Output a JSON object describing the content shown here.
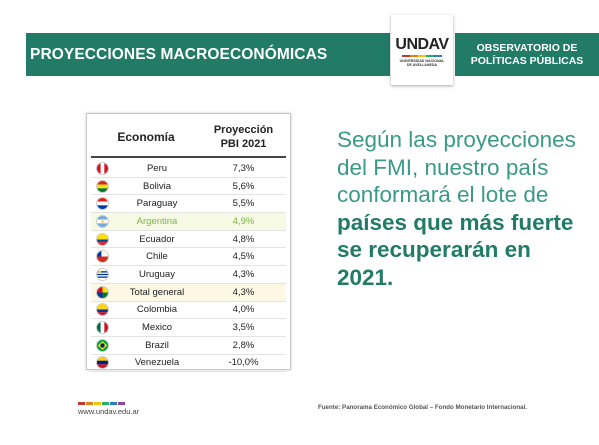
{
  "header": {
    "title": "PROYECCIONES MACROECONÓMICAS",
    "logo_mark": "UNDAV",
    "logo_sub": "UNIVERSIDAD NACIONAL DE AVELLANEDA",
    "right_line1": "OBSERVATORIO DE",
    "right_line2": "POLÍTICAS PÚBLICAS"
  },
  "table": {
    "col1": "Economía",
    "col2_line1": "Proyección",
    "col2_line2": "PBI 2021",
    "rows": [
      {
        "name": "Peru",
        "value": "7,3%",
        "flag": "peru-flag"
      },
      {
        "name": "Bolivia",
        "value": "5,6%",
        "flag": "bolivia-flag"
      },
      {
        "name": "Paraguay",
        "value": "5,5%",
        "flag": "paraguay-flag"
      },
      {
        "name": "Argentina",
        "value": "4,9%",
        "flag": "argentina-flag"
      },
      {
        "name": "Ecuador",
        "value": "4,8%",
        "flag": "ecuador-flag"
      },
      {
        "name": "Chile",
        "value": "4,5%",
        "flag": "chile-flag"
      },
      {
        "name": "Uruguay",
        "value": "4,3%",
        "flag": "uruguay-flag"
      },
      {
        "name": "Total general",
        "value": "4,3%",
        "flag": "latam-flag"
      },
      {
        "name": "Colombia",
        "value": "4,0%",
        "flag": "colombia-flag"
      },
      {
        "name": "Mexico",
        "value": "3,5%",
        "flag": "mexico-flag"
      },
      {
        "name": "Brazil",
        "value": "2,8%",
        "flag": "brazil-flag"
      },
      {
        "name": "Venezuela",
        "value": "-10,0%",
        "flag": "venezuela-flag"
      }
    ]
  },
  "blurb": {
    "part1": "Según las proyecciones del FMI, nuestro país conformará el lote de ",
    "part2": "países que más fuerte se recuperarán en 2021."
  },
  "footer": {
    "url": "www.undav.edu.ar",
    "source": "Fuente: Panorama Económico Global – Fondo Monetario Internacional."
  },
  "colors": {
    "brand_green": "#217b67",
    "text_teal": "#3a9a88",
    "argentina_highlight": "#7ab648"
  }
}
